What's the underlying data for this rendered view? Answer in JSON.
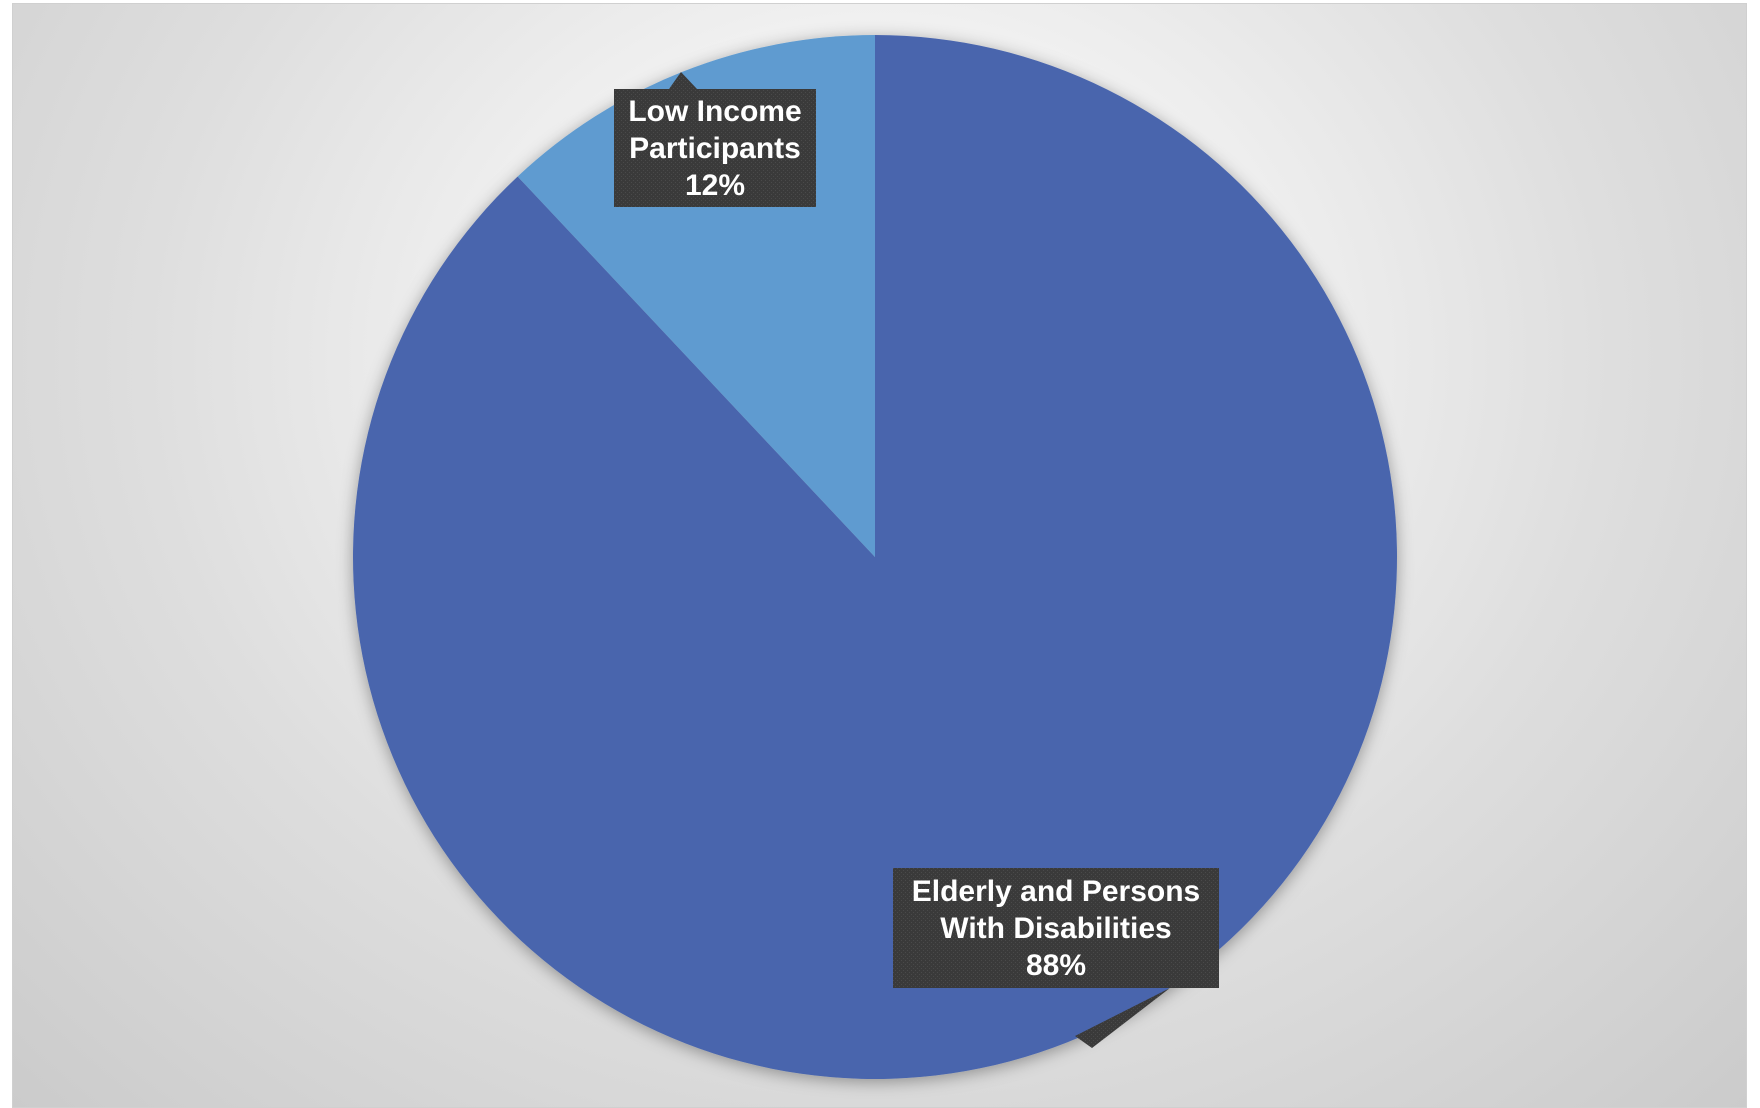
{
  "chart_data": {
    "type": "pie",
    "slices": [
      {
        "name": "Elderly and Persons With Disabilities",
        "label_lines": [
          "Elderly and Persons",
          "With Disabilities"
        ],
        "value": 88,
        "value_label": "88%",
        "color": "#4865AD"
      },
      {
        "name": "Low Income Participants",
        "label_lines": [
          "Low Income",
          "Participants"
        ],
        "value": 12,
        "value_label": "12%",
        "color": "#5F9BD0"
      }
    ],
    "start_angle": "12 o'clock",
    "direction": "clockwise",
    "data_labels": "callouts",
    "legend": "none",
    "title": ""
  },
  "colors": {
    "callout_fill": "#3a3a3a",
    "callout_text": "#ffffff"
  }
}
